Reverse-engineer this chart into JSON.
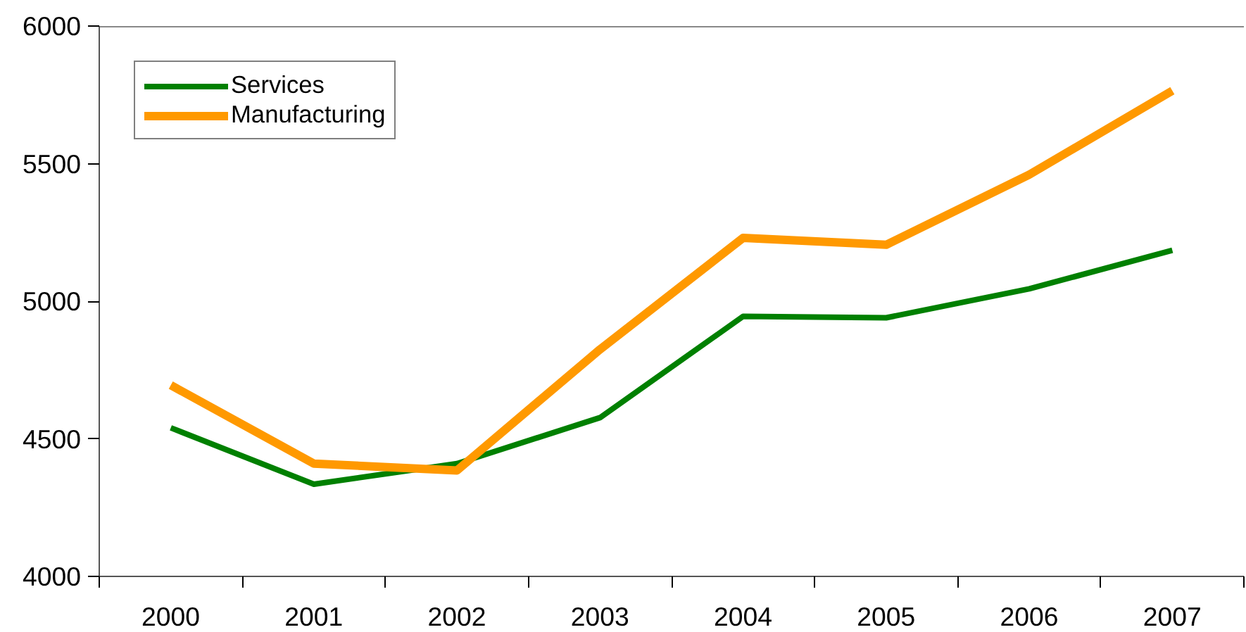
{
  "chart_data": {
    "type": "line",
    "categories": [
      "2000",
      "2001",
      "2002",
      "2003",
      "2004",
      "2005",
      "2006",
      "2007"
    ],
    "series": [
      {
        "name": "Services",
        "color": "#008000",
        "values": [
          4540,
          4335,
          4410,
          4577,
          4945,
          4940,
          5045,
          5185
        ]
      },
      {
        "name": "Manufacturing",
        "color": "#ff9900",
        "values": [
          4695,
          4410,
          4385,
          4825,
          5230,
          5205,
          5460,
          5765
        ]
      }
    ],
    "ylim": [
      4000,
      6000
    ],
    "yticks": [
      4000,
      4500,
      5000,
      5500,
      6000
    ],
    "grid": false,
    "legend": "top left",
    "marker": "none",
    "line_style": "solid"
  }
}
